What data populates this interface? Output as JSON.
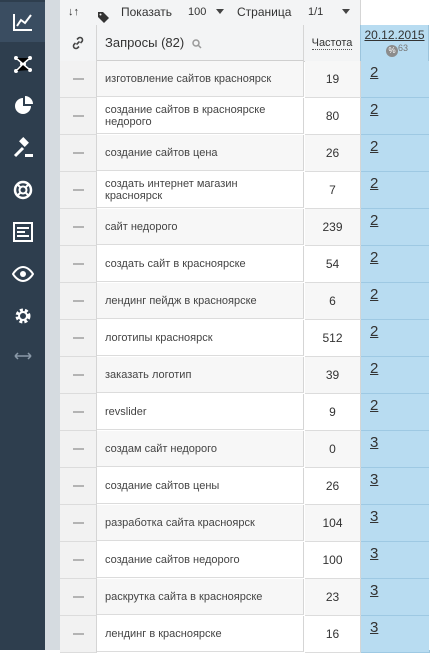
{
  "toolbar": {
    "sort_icon": "sort-icon",
    "tag_icon": "tag-icon",
    "show_label": "Показать",
    "show_count": "100",
    "page_label": "Страница",
    "page_value": "1/1"
  },
  "header": {
    "queries_label": "Запросы",
    "queries_count": "(82)",
    "frequency_label": "Частота",
    "date": "20.12.2015",
    "percent_badge": "%",
    "percent_value": "63"
  },
  "sidebar": {
    "items": [
      "chart-icon",
      "network-icon",
      "pie-chart-icon",
      "gavel-icon",
      "lifebuoy-icon",
      "list-icon",
      "eye-icon",
      "gear-icon",
      "resize-arrows-icon"
    ]
  },
  "rows": [
    {
      "query": "изготовление сайтов красноярск",
      "freq": "19",
      "pos": "2"
    },
    {
      "query": "создание сайтов в красноярске недорого",
      "freq": "80",
      "pos": "2"
    },
    {
      "query": "создание сайтов цена",
      "freq": "26",
      "pos": "2"
    },
    {
      "query": "создать интернет магазин красноярск",
      "freq": "7",
      "pos": "2"
    },
    {
      "query": "сайт недорого",
      "freq": "239",
      "pos": "2"
    },
    {
      "query": "создать сайт в красноярске",
      "freq": "54",
      "pos": "2"
    },
    {
      "query": "лендинг пейдж в красноярске",
      "freq": "6",
      "pos": "2"
    },
    {
      "query": "логотипы красноярск",
      "freq": "512",
      "pos": "2"
    },
    {
      "query": "заказать логотип",
      "freq": "39",
      "pos": "2"
    },
    {
      "query": "revslider",
      "freq": "9",
      "pos": "2"
    },
    {
      "query": "создам сайт недорого",
      "freq": "0",
      "pos": "3"
    },
    {
      "query": "создание сайтов цены",
      "freq": "26",
      "pos": "3"
    },
    {
      "query": "разработка сайта красноярск",
      "freq": "104",
      "pos": "3"
    },
    {
      "query": "создание сайтов недорого",
      "freq": "100",
      "pos": "3"
    },
    {
      "query": "раскрутка сайта в красноярске",
      "freq": "23",
      "pos": "3"
    },
    {
      "query": "лендинг в красноярске",
      "freq": "16",
      "pos": "3"
    }
  ],
  "colors": {
    "sidebar": "#2e3e4e",
    "position_column": "#b8dcf1"
  }
}
